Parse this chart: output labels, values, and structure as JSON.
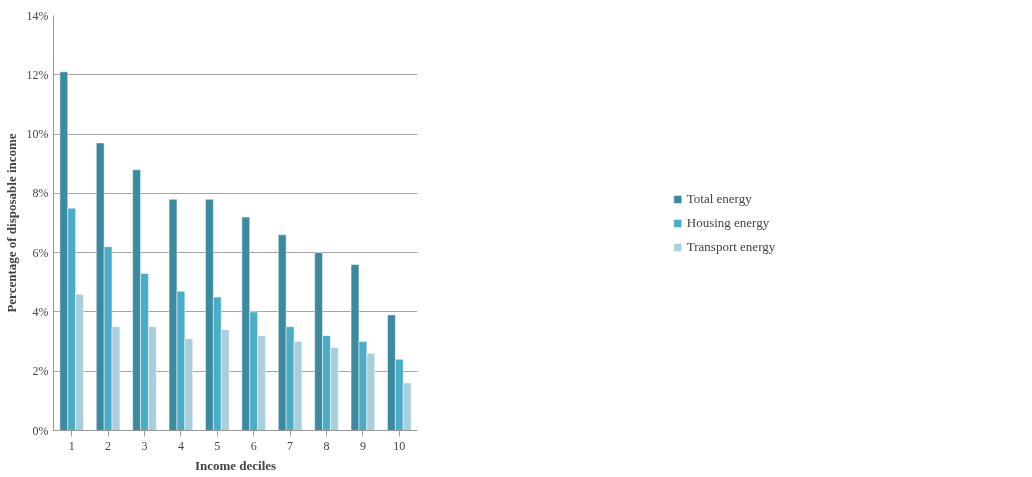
{
  "chart_data": {
    "type": "bar",
    "xlabel": "Income deciles",
    "ylabel": "Percentage of disposable income",
    "categories": [
      "1",
      "2",
      "3",
      "4",
      "5",
      "6",
      "7",
      "8",
      "9",
      "10"
    ],
    "series": [
      {
        "name": "Total energy",
        "color": "#3b8aa0",
        "values": [
          12.1,
          9.7,
          8.8,
          7.8,
          7.8,
          7.2,
          6.6,
          6.0,
          5.6,
          3.9
        ]
      },
      {
        "name": "Housing energy",
        "color": "#4bacc6",
        "values": [
          7.5,
          6.2,
          5.3,
          4.7,
          4.5,
          4.0,
          3.5,
          3.2,
          3.0,
          2.4
        ]
      },
      {
        "name": "Transport energy",
        "color": "#a9cedc",
        "values": [
          4.6,
          3.5,
          3.5,
          3.1,
          3.4,
          3.2,
          3.0,
          2.8,
          2.6,
          1.6
        ]
      }
    ],
    "ylim": [
      0,
      14
    ],
    "yticks": [
      {
        "value": 0,
        "label": "0%"
      },
      {
        "value": 2,
        "label": "2%"
      },
      {
        "value": 4,
        "label": "4%"
      },
      {
        "value": 6,
        "label": "6%"
      },
      {
        "value": 8,
        "label": "8%"
      },
      {
        "value": 10,
        "label": "10%"
      },
      {
        "value": 12,
        "label": "12%"
      },
      {
        "value": 14,
        "label": "14%"
      }
    ],
    "grid": "y",
    "legend": "right"
  }
}
